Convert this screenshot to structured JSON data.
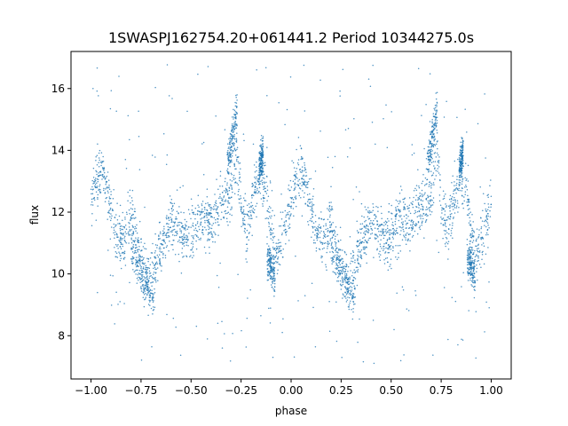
{
  "chart_data": {
    "type": "scatter",
    "title": "1SWASPJ162754.20+061441.2 Period 10344275.0s",
    "xlabel": "phase",
    "ylabel": "flux",
    "xlim": [
      -1.1,
      1.1
    ],
    "ylim": [
      6.6,
      17.2
    ],
    "xticks": [
      -1.0,
      -0.75,
      -0.5,
      -0.25,
      0.0,
      0.25,
      0.5,
      0.75,
      1.0
    ],
    "xtick_labels": [
      "−1.00",
      "−0.75",
      "−0.50",
      "−0.25",
      "0.00",
      "0.25",
      "0.50",
      "0.75",
      "1.00"
    ],
    "yticks": [
      8,
      10,
      12,
      14,
      16
    ],
    "ytick_labels": [
      "8",
      "10",
      "12",
      "14",
      "16"
    ],
    "grid": false,
    "marker_color": "#1f77b4",
    "series": [
      {
        "trend_phase": [
          0.0,
          0.02,
          0.05,
          0.08,
          0.1,
          0.13,
          0.16,
          0.2,
          0.23,
          0.26,
          0.28,
          0.32,
          0.35,
          0.4,
          0.45,
          0.5,
          0.55,
          0.6,
          0.65,
          0.68,
          0.7,
          0.73,
          0.75,
          0.78,
          0.82,
          0.85,
          0.88,
          0.9,
          0.93,
          0.96,
          1.0
        ],
        "trend_flux": [
          12.3,
          13.0,
          13.3,
          12.8,
          12.0,
          11.3,
          11.0,
          11.8,
          10.8,
          10.0,
          9.7,
          10.2,
          11.0,
          11.7,
          11.3,
          11.2,
          11.8,
          11.6,
          12.3,
          12.4,
          12.6,
          13.8,
          12.3,
          11.4,
          12.7,
          13.1,
          12.6,
          11.2,
          10.6,
          11.2,
          12.3
        ],
        "spread": 0.8,
        "bands": [
          {
            "phase": [
              0.2,
              0.32
            ],
            "flux": [
              10.8,
              9.2
            ]
          },
          {
            "phase": [
              0.68,
              0.73
            ],
            "flux": [
              13.5,
              15.3
            ]
          },
          {
            "phase": [
              0.84,
              0.86
            ],
            "flux": [
              13.3,
              14.0
            ]
          },
          {
            "phase": [
              0.88,
              0.92
            ],
            "flux": [
              10.6,
              9.8
            ]
          }
        ],
        "outliers_range": [
          7.0,
          16.8
        ]
      }
    ]
  }
}
